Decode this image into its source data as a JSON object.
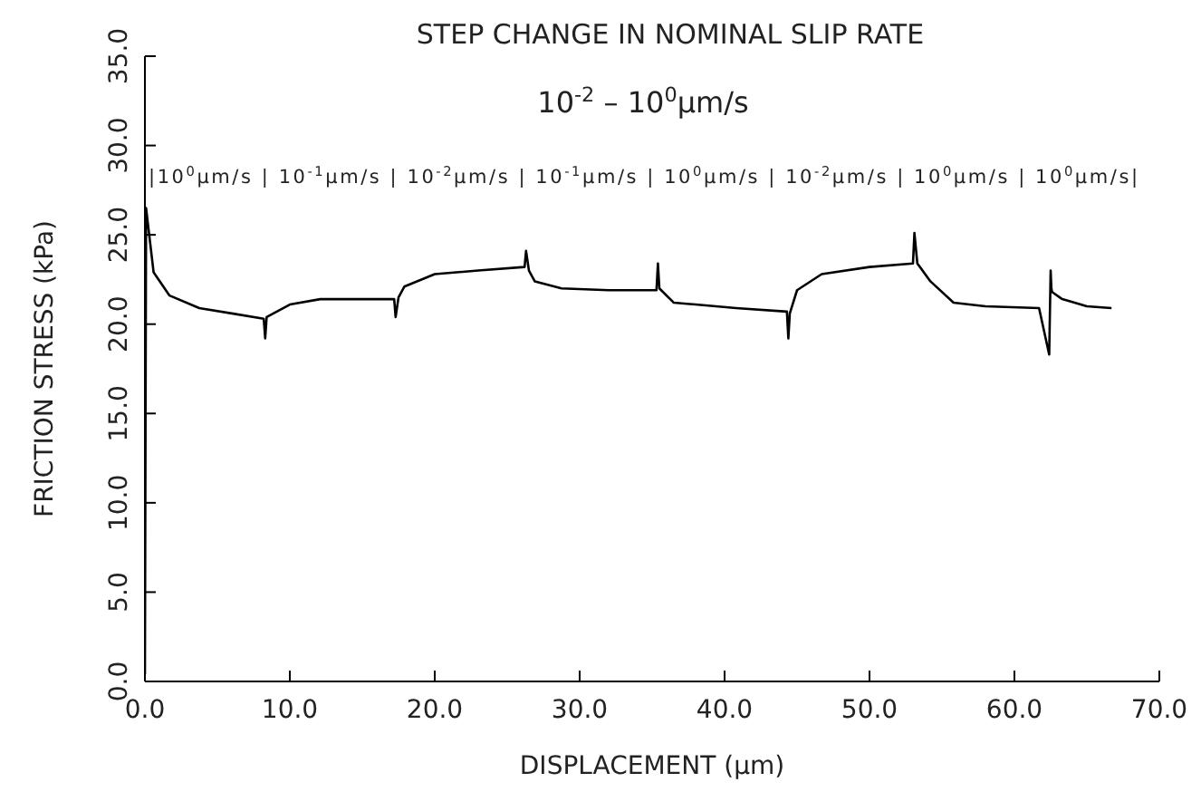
{
  "chart_data": {
    "type": "line",
    "title": "STEP CHANGE IN NOMINAL SLIP RATE",
    "subtitle": "10$^{-2}$  –  10$^{0}$μm/s",
    "xlabel": "DISPLACEMENT (μm)",
    "ylabel": "FRICTION STRESS (kPa)",
    "annotations": [
      "|10$^{0}$μm/s  | 10$^{-1}$μm/s  | 10$^{-2}$μm/s | 10$^{-1}$μm/s |  10$^{0}$μm/s  | 10$^{-2}$μm/s |  10$^{0}$μm/s  | 10$^{0}$μm/s|"
    ],
    "x": [
      0,
      0.08,
      0.6,
      1.7,
      3.75,
      6,
      8.2,
      8.3,
      8.4,
      10,
      12.1,
      15,
      17.2,
      17.3,
      17.5,
      17.9,
      20,
      23,
      26.2,
      26.3,
      26.5,
      26.9,
      28.75,
      32,
      35.3,
      35.4,
      35.5,
      36.5,
      38,
      40.8,
      44.3,
      44.4,
      44.5,
      45,
      46.7,
      50,
      53,
      53.1,
      53.3,
      54.2,
      55.8,
      58,
      61.7,
      62.4,
      62.5,
      62.55,
      62.6,
      63.3,
      65,
      66.7
    ],
    "series": [
      {
        "color": "#000000",
        "values": [
          0.4,
          26.5,
          22.9,
          21.6,
          20.9,
          20.6,
          20.3,
          19.2,
          20.4,
          21.1,
          21.4,
          21.4,
          21.4,
          20.4,
          21.5,
          22.1,
          22.8,
          23.0,
          23.2,
          24.1,
          23.0,
          22.4,
          22.0,
          21.9,
          21.9,
          23.4,
          22.0,
          21.2,
          21.1,
          20.9,
          20.7,
          19.2,
          20.6,
          21.9,
          22.8,
          23.2,
          23.4,
          25.1,
          23.4,
          22.4,
          21.2,
          21.0,
          20.9,
          18.3,
          23.0,
          22.0,
          21.8,
          21.4,
          21.0,
          20.9
        ]
      }
    ],
    "xlim": [
      0,
      70
    ],
    "xticks": [
      {
        "value": 0,
        "label": "0.0"
      },
      {
        "value": 10,
        "label": "10.0"
      },
      {
        "value": 20,
        "label": "20.0"
      },
      {
        "value": 30,
        "label": "30.0"
      },
      {
        "value": 40,
        "label": "40.0"
      },
      {
        "value": 50,
        "label": "50.0"
      },
      {
        "value": 60,
        "label": "60.0"
      },
      {
        "value": 70,
        "label": "70.0"
      }
    ],
    "ylim": [
      0,
      35
    ],
    "yticks": [
      {
        "value": 0,
        "label": "0.0"
      },
      {
        "value": 5,
        "label": "5.0"
      },
      {
        "value": 10,
        "label": "10.0"
      },
      {
        "value": 15,
        "label": "15.0"
      },
      {
        "value": 20,
        "label": "20.0"
      },
      {
        "value": 25,
        "label": "25.0"
      },
      {
        "value": 30,
        "label": "30.0"
      },
      {
        "value": 35,
        "label": "35.0"
      }
    ],
    "grid": false,
    "legend": false,
    "marker": "none",
    "line_style": "solid"
  }
}
